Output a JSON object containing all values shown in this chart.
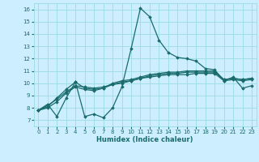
{
  "title": "",
  "xlabel": "Humidex (Indice chaleur)",
  "ylabel": "",
  "xlim": [
    -0.5,
    23.5
  ],
  "ylim": [
    6.5,
    16.5
  ],
  "xticks": [
    0,
    1,
    2,
    3,
    4,
    5,
    6,
    7,
    8,
    9,
    10,
    11,
    12,
    13,
    14,
    15,
    16,
    17,
    18,
    19,
    20,
    21,
    22,
    23
  ],
  "yticks": [
    7,
    8,
    9,
    10,
    11,
    12,
    13,
    14,
    15,
    16
  ],
  "bg_color": "#cceeff",
  "grid_color": "#99dddd",
  "line_color": "#1a6b6b",
  "line_width": 0.9,
  "marker": "D",
  "marker_size": 1.8,
  "series": [
    [
      7.8,
      8.3,
      7.3,
      8.8,
      10.1,
      7.3,
      7.5,
      7.2,
      8.0,
      9.7,
      12.8,
      16.1,
      15.4,
      13.5,
      12.5,
      12.1,
      12.0,
      11.8,
      11.2,
      11.1,
      10.2,
      10.5,
      9.6,
      9.8
    ],
    [
      7.8,
      8.0,
      8.5,
      9.2,
      9.7,
      9.5,
      9.4,
      9.6,
      9.9,
      10.0,
      10.2,
      10.4,
      10.5,
      10.6,
      10.7,
      10.7,
      10.7,
      10.8,
      10.8,
      10.8,
      10.2,
      10.3,
      10.2,
      10.3
    ],
    [
      7.8,
      8.2,
      8.7,
      9.3,
      9.8,
      9.7,
      9.6,
      9.7,
      9.9,
      10.1,
      10.2,
      10.4,
      10.6,
      10.7,
      10.8,
      10.8,
      10.9,
      10.9,
      10.9,
      10.9,
      10.3,
      10.4,
      10.3,
      10.4
    ],
    [
      7.8,
      8.1,
      8.8,
      9.5,
      10.1,
      9.6,
      9.5,
      9.6,
      10.0,
      10.2,
      10.3,
      10.5,
      10.7,
      10.8,
      10.9,
      10.9,
      11.0,
      11.0,
      11.0,
      11.0,
      10.3,
      10.4,
      10.3,
      10.4
    ]
  ],
  "tick_fontsize": 5.0,
  "xlabel_fontsize": 6.0
}
